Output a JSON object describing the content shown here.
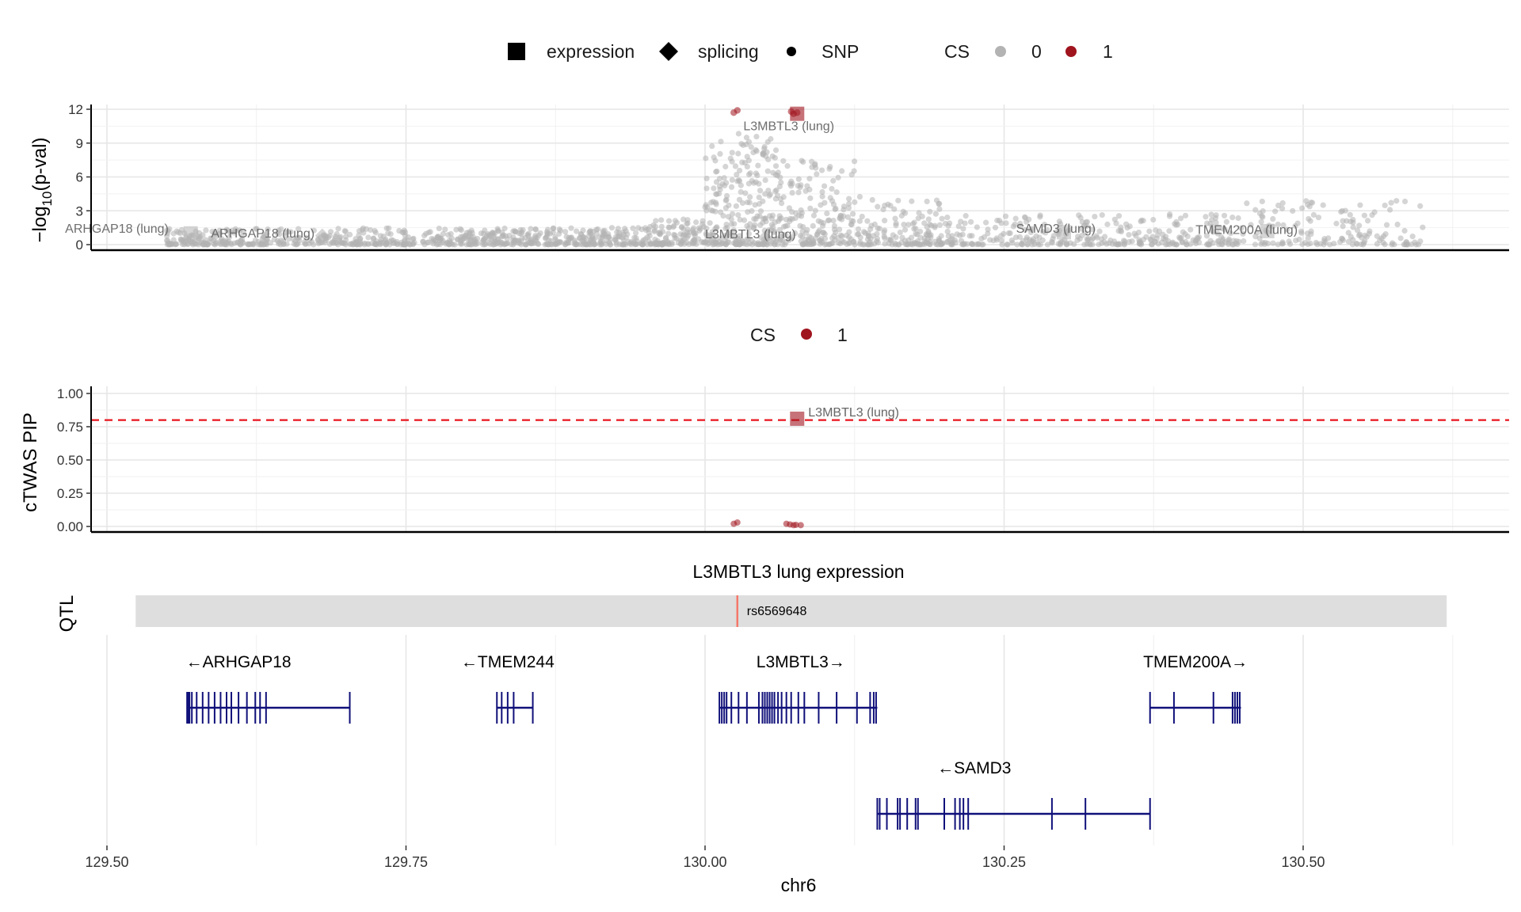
{
  "legend_top": {
    "shape_items": [
      {
        "name": "square-key-icon",
        "label": "expression"
      },
      {
        "name": "diamond-key-icon",
        "label": "splicing"
      },
      {
        "name": "circle-key-icon",
        "label": "SNP"
      }
    ],
    "cs_title": "CS",
    "cs_items": [
      {
        "label": "0",
        "color": "#b3b3b3"
      },
      {
        "label": "1",
        "color": "#a0141e"
      }
    ]
  },
  "legend_mid": {
    "cs_title": "CS",
    "cs_items": [
      {
        "label": "1",
        "color": "#a0141e"
      }
    ]
  },
  "colors": {
    "cs0": "#b3b3b3",
    "cs1": "#a0141e",
    "threshold": "#e8141e",
    "gene": "#10107a",
    "qtl_band": "#dedede",
    "qtl_line": "#f4796b"
  },
  "chart_data": [
    {
      "type": "scatter",
      "id": "gwas",
      "ylabel_main": "−log",
      "ylabel_sub": "10",
      "ylabel_tail": "(p-val)",
      "xlim": [
        129.47,
        130.67
      ],
      "ylim": [
        0,
        12.5
      ],
      "y_ticks": [
        0,
        3,
        6,
        9,
        12
      ],
      "x_gridlines": [
        129.5,
        129.625,
        129.75,
        129.875,
        130.0,
        130.125,
        130.25,
        130.375,
        130.5,
        130.625
      ],
      "grid": true,
      "snp_cs1": [
        {
          "x": 130.024,
          "y": 11.7
        },
        {
          "x": 130.027,
          "y": 11.9
        },
        {
          "x": 130.072,
          "y": 11.8
        },
        {
          "x": 130.074,
          "y": 11.6
        },
        {
          "x": 130.077,
          "y": 11.7
        }
      ],
      "genes": [
        {
          "x": 130.077,
          "y": 11.6,
          "shape": "square",
          "cs": 1,
          "label": "L3MBTL3 (lung)",
          "label_x": 130.032,
          "label_y": 10.5
        },
        {
          "x": 129.57,
          "y": 1.0,
          "shape": "square",
          "cs": 0,
          "label": "ARHGAP18 (lung)",
          "label_x": 129.465,
          "label_y": 1.4
        },
        {
          "x": 129.68,
          "y": 0.8,
          "shape": "diamond",
          "cs": 0,
          "label": "ARHGAP18 (lung)",
          "label_x": 129.587,
          "label_y": 1.0
        },
        {
          "x": 130.05,
          "y": 0.6,
          "shape": "diamond",
          "cs": 0,
          "label": "L3MBTL3 (lung)",
          "label_x": 130.0,
          "label_y": 0.9
        },
        {
          "x": 130.3,
          "y": 1.1,
          "shape": "square",
          "cs": 0,
          "label": "SAMD3 (lung)",
          "label_x": 130.26,
          "label_y": 1.4
        },
        {
          "x": 130.47,
          "y": 1.2,
          "shape": "square",
          "cs": 0,
          "label": "TMEM200A (lung)",
          "label_x": 130.41,
          "label_y": 1.3
        }
      ],
      "snp_cs0_summary": [
        {
          "x_from": 129.55,
          "x_to": 129.95,
          "y_max": 1.5,
          "count": 700
        },
        {
          "x_from": 129.95,
          "x_to": 130.0,
          "y_max": 2.3,
          "count": 120
        },
        {
          "x_from": 130.0,
          "x_to": 130.06,
          "y_max": 10.0,
          "count": 260
        },
        {
          "x_from": 130.06,
          "x_to": 130.13,
          "y_max": 7.5,
          "count": 200
        },
        {
          "x_from": 130.13,
          "x_to": 130.2,
          "y_max": 4.0,
          "count": 140
        },
        {
          "x_from": 130.2,
          "x_to": 130.45,
          "y_max": 2.7,
          "count": 320
        },
        {
          "x_from": 130.45,
          "x_to": 130.6,
          "y_max": 4.0,
          "count": 150
        }
      ]
    },
    {
      "type": "scatter",
      "id": "ctwas",
      "ylabel": "cTWAS PIP",
      "xlim": [
        129.47,
        130.67
      ],
      "ylim": [
        -0.03,
        1.03
      ],
      "y_ticks": [
        "0.00",
        "0.25",
        "0.50",
        "0.75",
        "1.00"
      ],
      "threshold": 0.8,
      "grid": true,
      "points": [
        {
          "x": 130.077,
          "y": 0.81,
          "shape": "square",
          "cs": 1,
          "label": "L3MBTL3 (lung)"
        },
        {
          "x": 130.024,
          "y": 0.02,
          "shape": "circle",
          "cs": 1
        },
        {
          "x": 130.027,
          "y": 0.03,
          "shape": "circle",
          "cs": 1
        },
        {
          "x": 130.068,
          "y": 0.02,
          "shape": "circle",
          "cs": 1
        },
        {
          "x": 130.071,
          "y": 0.015,
          "shape": "circle",
          "cs": 1
        },
        {
          "x": 130.074,
          "y": 0.01,
          "shape": "circle",
          "cs": 1
        },
        {
          "x": 130.076,
          "y": 0.012,
          "shape": "circle",
          "cs": 1
        },
        {
          "x": 130.08,
          "y": 0.01,
          "shape": "circle",
          "cs": 1
        }
      ]
    },
    {
      "type": "gene-track",
      "id": "track",
      "qtl_title": "L3MBTL3 lung expression",
      "qtl_ylabel": "QTL",
      "qtl_range": [
        129.524,
        130.62
      ],
      "qtl_snp": {
        "x": 130.027,
        "label": "rs6569648"
      },
      "xlabel": "chr6",
      "x_ticks": [
        "129.50",
        "129.75",
        "130.00",
        "130.25",
        "130.50"
      ],
      "genes": [
        {
          "name": "ARHGAP18",
          "arrow": "←ARHGAP18",
          "strand": "-",
          "row": 1,
          "start": 129.567,
          "end": 129.703,
          "label_x": 129.61,
          "exons": [
            129.567,
            129.568,
            129.569,
            129.571,
            129.575,
            129.58,
            129.585,
            129.59,
            129.595,
            129.6,
            129.604,
            129.61,
            129.617,
            129.624,
            129.628,
            129.633,
            129.703
          ]
        },
        {
          "name": "TMEM244",
          "arrow": "←TMEM244",
          "strand": "-",
          "row": 1,
          "start": 129.826,
          "end": 129.856,
          "label_x": 129.835,
          "exons": [
            129.826,
            129.83,
            129.835,
            129.84,
            129.856
          ]
        },
        {
          "name": "L3MBTL3",
          "arrow": "L3MBTL3→",
          "strand": "+",
          "row": 1,
          "start": 130.012,
          "end": 130.144,
          "label_x": 130.08,
          "exons": [
            130.012,
            130.014,
            130.016,
            130.018,
            130.022,
            130.028,
            130.035,
            130.045,
            130.048,
            130.05,
            130.052,
            130.054,
            130.056,
            130.058,
            130.061,
            130.064,
            130.068,
            130.072,
            130.078,
            130.083,
            130.095,
            130.11,
            130.127,
            130.138,
            130.141,
            130.143
          ]
        },
        {
          "name": "TMEM200A",
          "arrow": "TMEM200A→",
          "strand": "+",
          "row": 1,
          "start": 130.372,
          "end": 130.448,
          "label_x": 130.41,
          "exons": [
            130.372,
            130.392,
            130.425,
            130.441,
            130.443,
            130.445,
            130.447
          ]
        },
        {
          "name": "SAMD3",
          "arrow": "←SAMD3",
          "strand": "-",
          "row": 2,
          "start": 130.144,
          "end": 130.372,
          "label_x": 130.225,
          "exons": [
            130.144,
            130.146,
            130.152,
            130.161,
            130.163,
            130.169,
            130.176,
            130.178,
            130.2,
            130.209,
            130.213,
            130.216,
            130.22,
            130.29,
            130.318,
            130.372
          ]
        }
      ]
    }
  ]
}
